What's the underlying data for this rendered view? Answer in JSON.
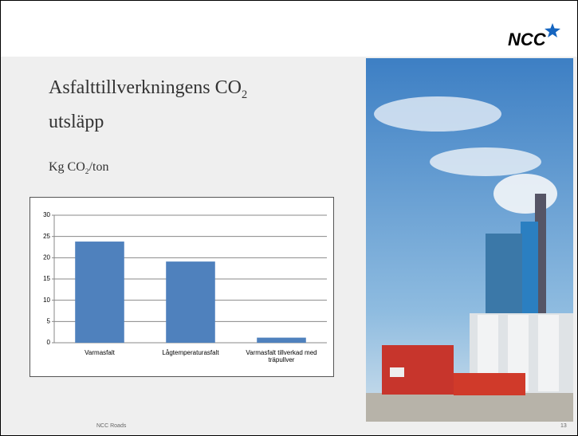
{
  "slide": {
    "logo": "NCC",
    "title": [
      "Asfalttillverkningens CO",
      "2",
      "utsläpp"
    ],
    "subtitle": [
      "Kg CO",
      "2",
      "/ton"
    ],
    "footer": "NCC Roads",
    "page_number": "13"
  },
  "chart_data": {
    "type": "bar",
    "categories": [
      "Varmasfalt",
      "Lågtemperaturasfalt",
      "Varmasfalt tillverkad med träpullver"
    ],
    "values": [
      23.8,
      19.1,
      1.2
    ],
    "color": "#4f81bd",
    "ylim": [
      0,
      30
    ],
    "yticks": [
      0,
      5,
      10,
      15,
      20,
      25,
      30
    ],
    "grid": true
  }
}
